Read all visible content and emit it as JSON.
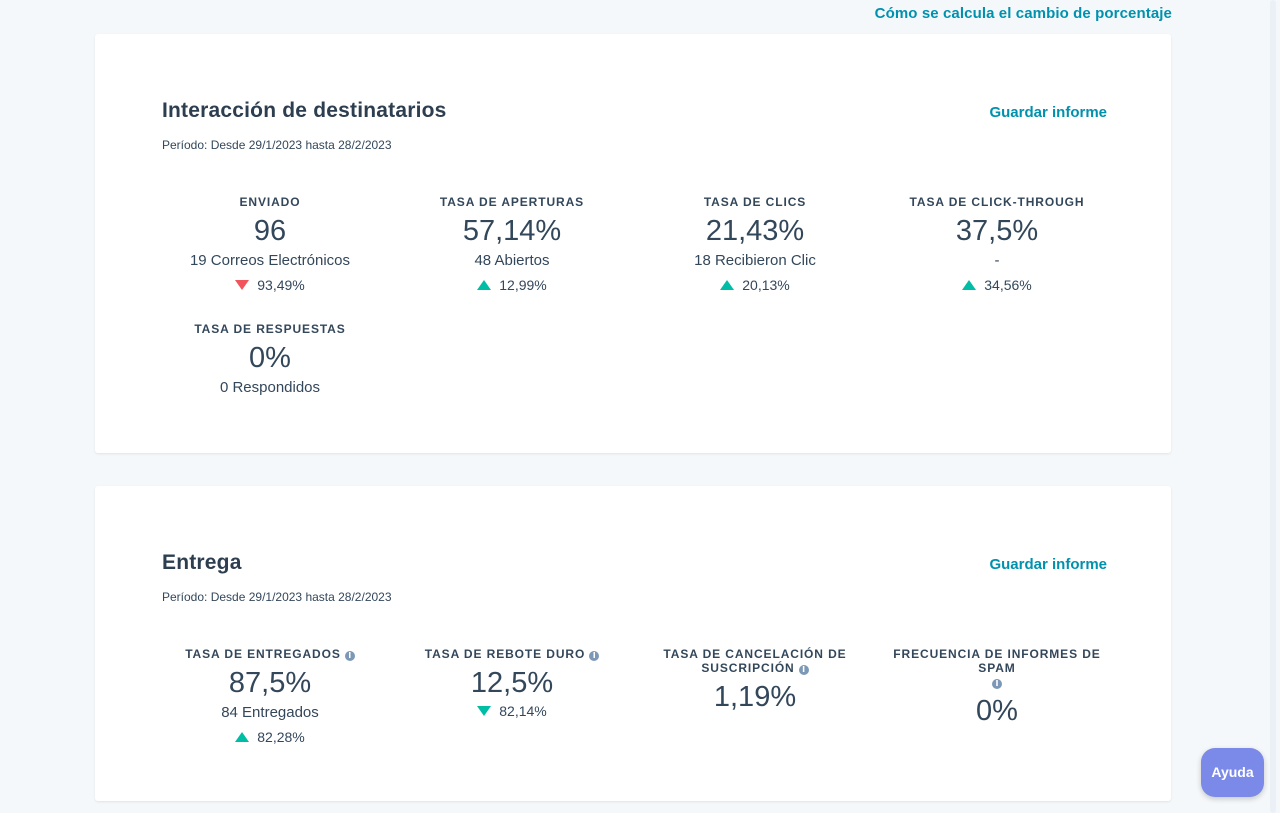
{
  "header": {
    "percent_change_link": "Cómo se calcula el cambio de porcentaje"
  },
  "engagement": {
    "title": "Interacción de destinatarios",
    "save_label": "Guardar informe",
    "period": "Período: Desde 29/1/2023 hasta 28/2/2023",
    "metrics": [
      {
        "label": "ENVIADO",
        "value": "96",
        "sub": "19 Correos Electrónicos",
        "change": "93,49%",
        "direction": "down"
      },
      {
        "label": "TASA DE APERTURAS",
        "value": "57,14%",
        "sub": "48 Abiertos",
        "change": "12,99%",
        "direction": "up"
      },
      {
        "label": "TASA DE CLICS",
        "value": "21,43%",
        "sub": "18 Recibieron Clic",
        "change": "20,13%",
        "direction": "up"
      },
      {
        "label": "TASA DE CLICK-THROUGH",
        "value": "37,5%",
        "sub": "-",
        "change": "34,56%",
        "direction": "up"
      },
      {
        "label": "TASA DE RESPUESTAS",
        "value": "0%",
        "sub": "0 Respondidos"
      }
    ]
  },
  "delivery": {
    "title": "Entrega",
    "save_label": "Guardar informe",
    "period": "Período: Desde 29/1/2023 hasta 28/2/2023",
    "metrics": [
      {
        "label": "TASA DE ENTREGADOS",
        "value": "87,5%",
        "sub": "84 Entregados",
        "change": "82,28%",
        "direction": "up"
      },
      {
        "label": "TASA DE REBOTE DURO",
        "value": "12,5%",
        "change": "82,14%",
        "direction": "down"
      },
      {
        "label_line1": "TASA DE CANCELACIÓN DE",
        "label_line2": "SUSCRIPCIÓN",
        "value": "1,19%"
      },
      {
        "label_line1": "FRECUENCIA DE INFORMES DE SPAM",
        "value": "0%"
      }
    ]
  },
  "help": {
    "label": "Ayuda"
  },
  "icons": {
    "info": "info-icon",
    "up": "triangle-up-icon",
    "down": "triangle-down-icon"
  },
  "colors": {
    "link": "#0091ae",
    "up": "#00bda5",
    "down_bad": "#f2545b",
    "help": "#7b8ae8"
  }
}
